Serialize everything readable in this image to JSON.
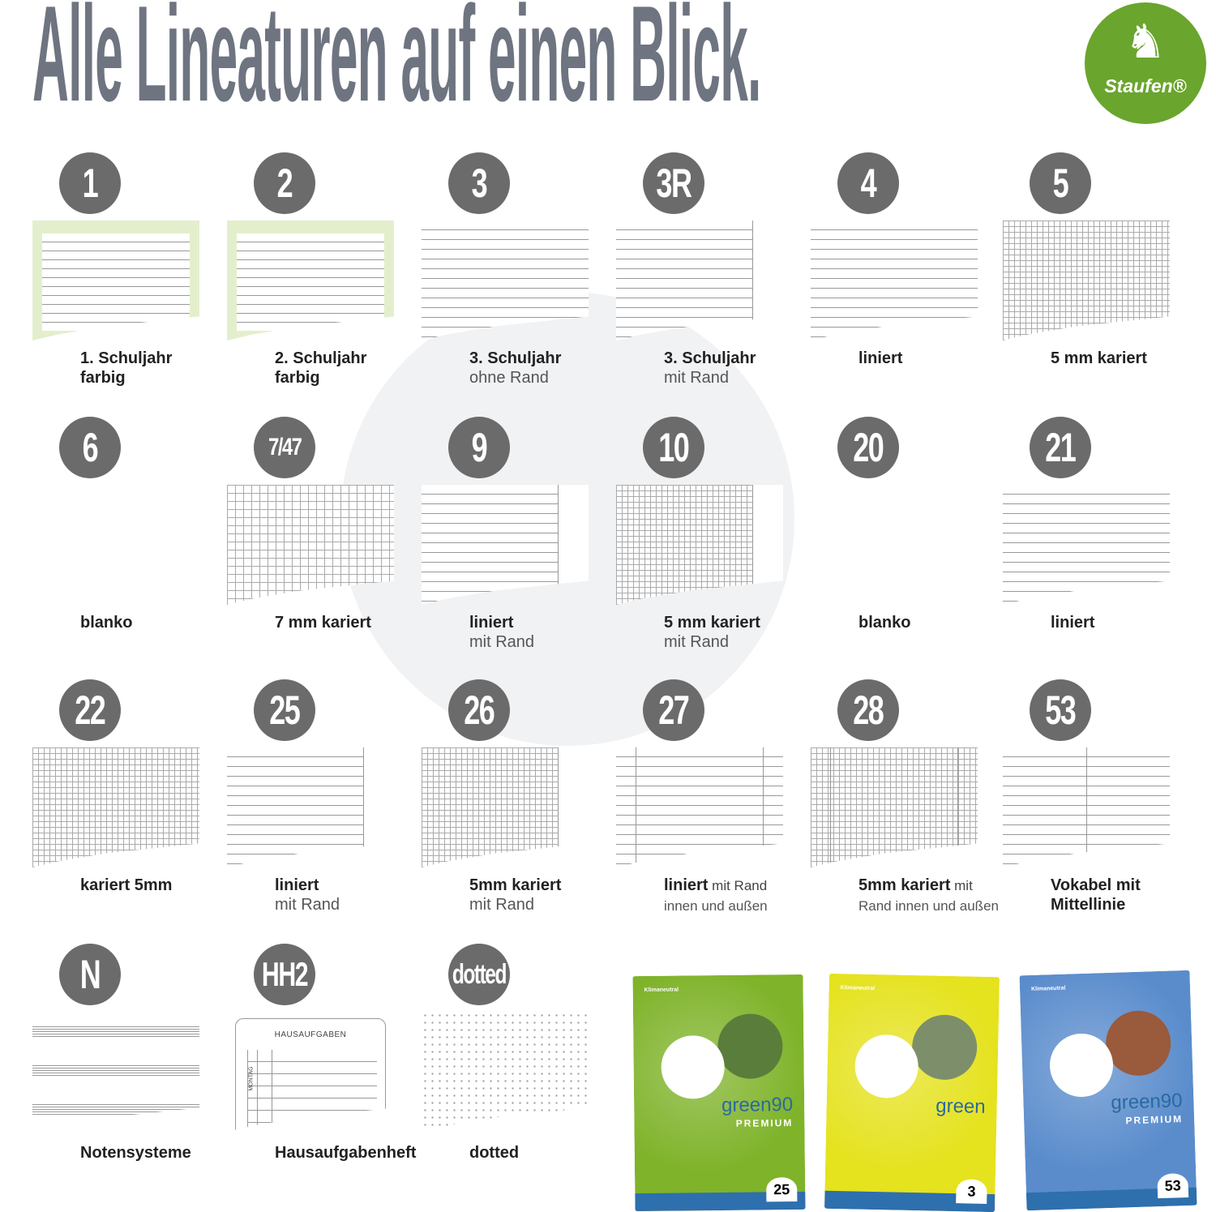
{
  "title": "Alle Lineaturen auf einen Blick.",
  "logo": {
    "text": "Staufen®",
    "color": "#6aa52d"
  },
  "badge_color": "#6b6b6b",
  "items": [
    {
      "badge": "1",
      "pattern": "green",
      "bold": "1. Schuljahr",
      "line2": "farbig",
      "line2_bold": true
    },
    {
      "badge": "2",
      "pattern": "green",
      "bold": "2. Schuljahr",
      "line2": "farbig",
      "line2_bold": true
    },
    {
      "badge": "3",
      "pattern": "lined",
      "bold": "3. Schuljahr",
      "line2": "ohne Rand"
    },
    {
      "badge": "3R",
      "pattern": "lined-margin",
      "bold": "3. Schuljahr",
      "line2": "mit Rand"
    },
    {
      "badge": "4",
      "pattern": "lined",
      "bold": "liniert"
    },
    {
      "badge": "5",
      "pattern": "grid",
      "bold": "5 mm kariert"
    },
    {
      "badge": "6",
      "pattern": "blank",
      "bold": "blanko"
    },
    {
      "badge": "7/47",
      "pattern": "grid7",
      "bold": "7 mm kariert"
    },
    {
      "badge": "9",
      "pattern": "lined-margin",
      "bold": "liniert",
      "line2": "mit Rand"
    },
    {
      "badge": "10",
      "pattern": "grid-margin",
      "bold": "5 mm kariert",
      "line2": "mit Rand"
    },
    {
      "badge": "20",
      "pattern": "blank",
      "bold": "blanko"
    },
    {
      "badge": "21",
      "pattern": "lined",
      "bold": "liniert"
    },
    {
      "badge": "22",
      "pattern": "grid",
      "bold": "kariert 5mm"
    },
    {
      "badge": "25",
      "pattern": "lined-margin",
      "bold": "liniert",
      "line2": "mit Rand"
    },
    {
      "badge": "26",
      "pattern": "grid-margin",
      "bold": "5mm kariert",
      "line2": "mit Rand"
    },
    {
      "badge": "27",
      "pattern": "lined-both",
      "bold": "liniert",
      "inline": " mit Rand",
      "line2": "innen und außen"
    },
    {
      "badge": "28",
      "pattern": "grid-both",
      "bold": "5mm kariert",
      "inline": " mit",
      "line2": "Rand innen und außen"
    },
    {
      "badge": "53",
      "pattern": "vocab",
      "bold": "Vokabel mit",
      "line2": "Mittellinie",
      "line2_bold": true
    },
    {
      "badge": "N",
      "pattern": "music",
      "bold": "Notensysteme"
    },
    {
      "badge": "HH2",
      "pattern": "homework",
      "bold": "Hausaufgabenheft",
      "paper_header": "HAUSAUFGABEN",
      "paper_day": "MONTAG"
    },
    {
      "badge": "dotted",
      "pattern": "dotted",
      "bold": "dotted"
    }
  ],
  "covers": [
    {
      "color": "#7fb32a",
      "pic": "#5b7d3b",
      "brand": "green90",
      "sub": "PREMIUM",
      "number": "25",
      "klima": "Klimaneutral"
    },
    {
      "color": "#e5e21e",
      "pic": "#7d8f6a",
      "brand": "green",
      "sub": "",
      "number": "3",
      "klima": "Klimaneutral"
    },
    {
      "color": "#5a8ccc",
      "pic": "#9a5a3c",
      "brand": "green90",
      "sub": "PREMIUM",
      "number": "53",
      "klima": "Klimaneutral"
    }
  ]
}
